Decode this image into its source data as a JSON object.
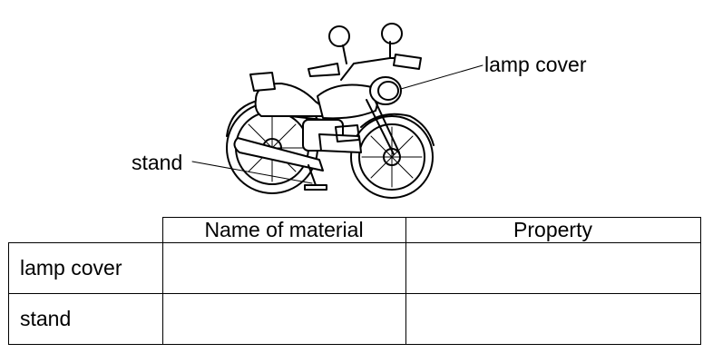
{
  "diagram": {
    "object_icon": "motorcycle-icon",
    "labels": {
      "lamp_cover": "lamp cover",
      "stand": "stand"
    }
  },
  "table": {
    "headers": [
      "",
      "Name of material",
      "Property"
    ],
    "rows": [
      {
        "part": "lamp cover",
        "material": "",
        "property": ""
      },
      {
        "part": "stand",
        "material": "",
        "property": ""
      }
    ]
  }
}
